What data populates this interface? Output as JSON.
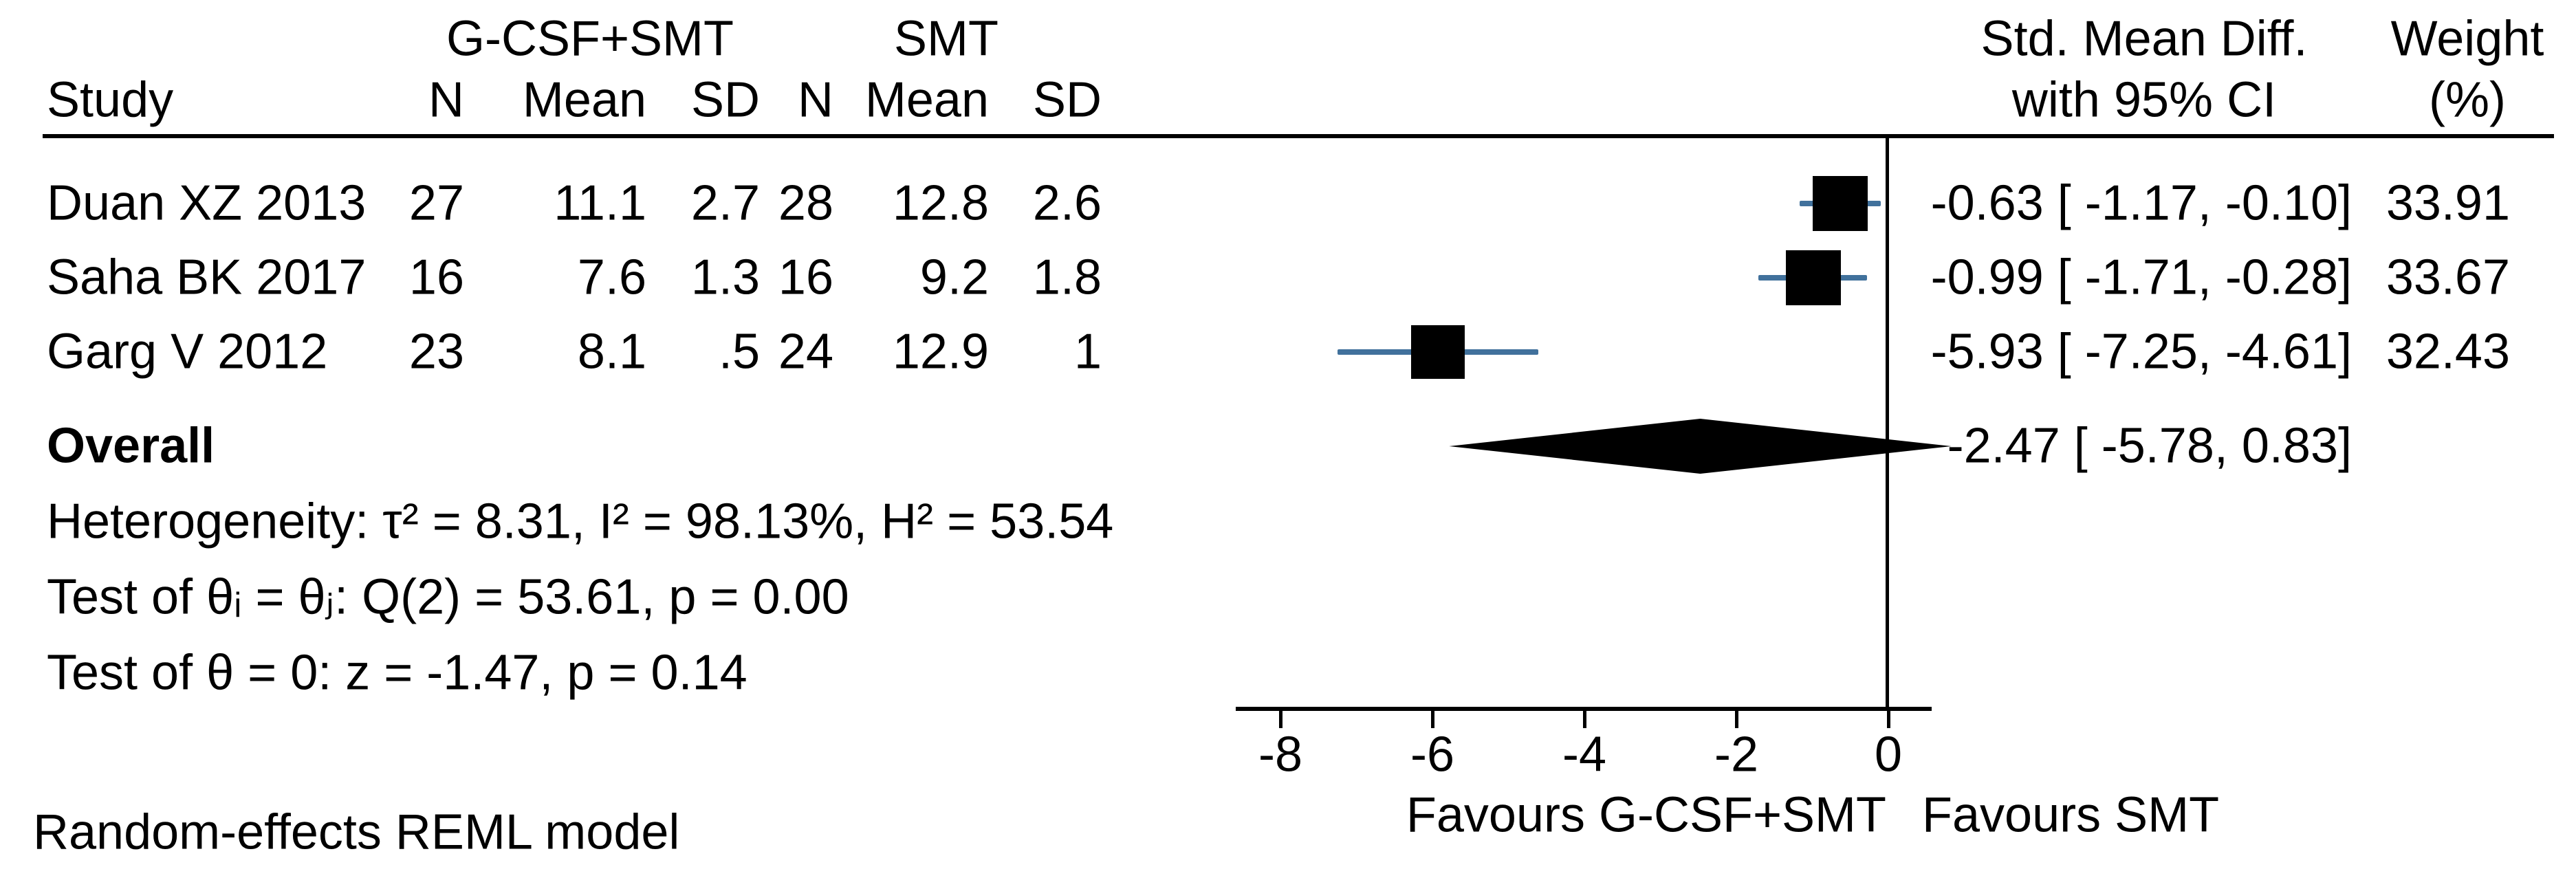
{
  "header": {
    "study": "Study",
    "treatment_group": "G-CSF+SMT",
    "control_group": "SMT",
    "sub_columns": [
      "N",
      "Mean",
      "SD",
      "N",
      "Mean",
      "SD"
    ],
    "effect_line1": "Std. Mean Diff.",
    "effect_line2": "with 95% CI",
    "weight_line1": "Weight",
    "weight_line2": "(%)"
  },
  "chart_data": {
    "type": "forest",
    "effect_measure": "Std. Mean Diff.",
    "studies": [
      {
        "study": "Duan XZ 2013",
        "treat_n": "27",
        "treat_mean": "11.1",
        "treat_sd": "2.7",
        "ctrl_n": "28",
        "ctrl_mean": "12.8",
        "ctrl_sd": "2.6",
        "estimate": -0.63,
        "ci_low": -1.17,
        "ci_high": -0.1,
        "ci_text": "-0.63 [ -1.17,  -0.10]",
        "weight_pct": 33.91,
        "weight_text": "33.91"
      },
      {
        "study": "Saha BK 2017",
        "treat_n": "16",
        "treat_mean": "7.6",
        "treat_sd": "1.3",
        "ctrl_n": "16",
        "ctrl_mean": "9.2",
        "ctrl_sd": "1.8",
        "estimate": -0.99,
        "ci_low": -1.71,
        "ci_high": -0.28,
        "ci_text": "-0.99 [ -1.71,  -0.28]",
        "weight_pct": 33.67,
        "weight_text": "33.67"
      },
      {
        "study": "Garg V 2012",
        "treat_n": "23",
        "treat_mean": "8.1",
        "treat_sd": ".5",
        "ctrl_n": "24",
        "ctrl_mean": "12.9",
        "ctrl_sd": "1",
        "estimate": -5.93,
        "ci_low": -7.25,
        "ci_high": -4.61,
        "ci_text": "-5.93 [ -7.25,  -4.61]",
        "weight_pct": 32.43,
        "weight_text": "32.43"
      }
    ],
    "overall": {
      "label": "Overall",
      "estimate": -2.47,
      "ci_low": -5.78,
      "ci_high": 0.83,
      "ci_text": "-2.47 [ -5.78,   0.83]"
    },
    "stats": {
      "heterogeneity": "Heterogeneity: τ² = 8.31, I² = 98.13%, H² = 53.54",
      "test_thetas": "Test of θᵢ = θⱼ: Q(2) = 53.61, p = 0.00",
      "test_zero": "Test of θ = 0: z = -1.47, p = 0.14"
    },
    "x_axis": {
      "tick_values": [
        -8,
        -6,
        -4,
        -2,
        0
      ],
      "tick_labels": [
        "-8",
        "-6",
        "-4",
        "-2",
        "0"
      ],
      "reference_line": 0,
      "favours_left": "Favours G-CSF+SMT",
      "favours_right": "Favours SMT"
    },
    "footnote": "Random-effects REML model",
    "colors": {
      "marker": "#000000",
      "ci_line": "#41719c",
      "text": "#000000"
    }
  }
}
